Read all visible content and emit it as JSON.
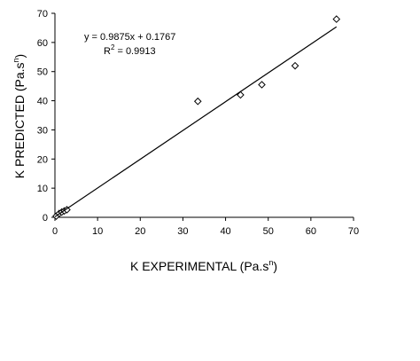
{
  "chart_data": {
    "type": "scatter",
    "xlabel": "K EXPERIMENTAL (Pa.s",
    "xlabel_sup": "n",
    "xlabel_end": ")",
    "ylabel": "K PREDICTED (Pa.s",
    "ylabel_sup": "n",
    "ylabel_end": ")",
    "xlim": [
      0,
      70
    ],
    "ylim": [
      0,
      70
    ],
    "xticks": [
      0,
      10,
      20,
      30,
      40,
      50,
      60,
      70
    ],
    "yticks": [
      0,
      10,
      20,
      30,
      40,
      50,
      60,
      70
    ],
    "points": [
      {
        "x": 0.3,
        "y": 0.4
      },
      {
        "x": 1.0,
        "y": 1.3
      },
      {
        "x": 1.6,
        "y": 1.8
      },
      {
        "x": 2.2,
        "y": 2.2
      },
      {
        "x": 2.8,
        "y": 2.6
      },
      {
        "x": 33.5,
        "y": 39.8
      },
      {
        "x": 43.5,
        "y": 42.0
      },
      {
        "x": 48.5,
        "y": 45.5
      },
      {
        "x": 56.3,
        "y": 52.0
      },
      {
        "x": 66.0,
        "y": 68.0
      }
    ],
    "trendline": {
      "slope": 0.9875,
      "intercept": 0.1767,
      "x_range": [
        0,
        66
      ],
      "equation": "y = 0.9875x + 0.1767",
      "r2_prefix": "R",
      "r2_sup": "2",
      "r2_value": " = 0.9913"
    },
    "grid": false,
    "legend": "none"
  }
}
